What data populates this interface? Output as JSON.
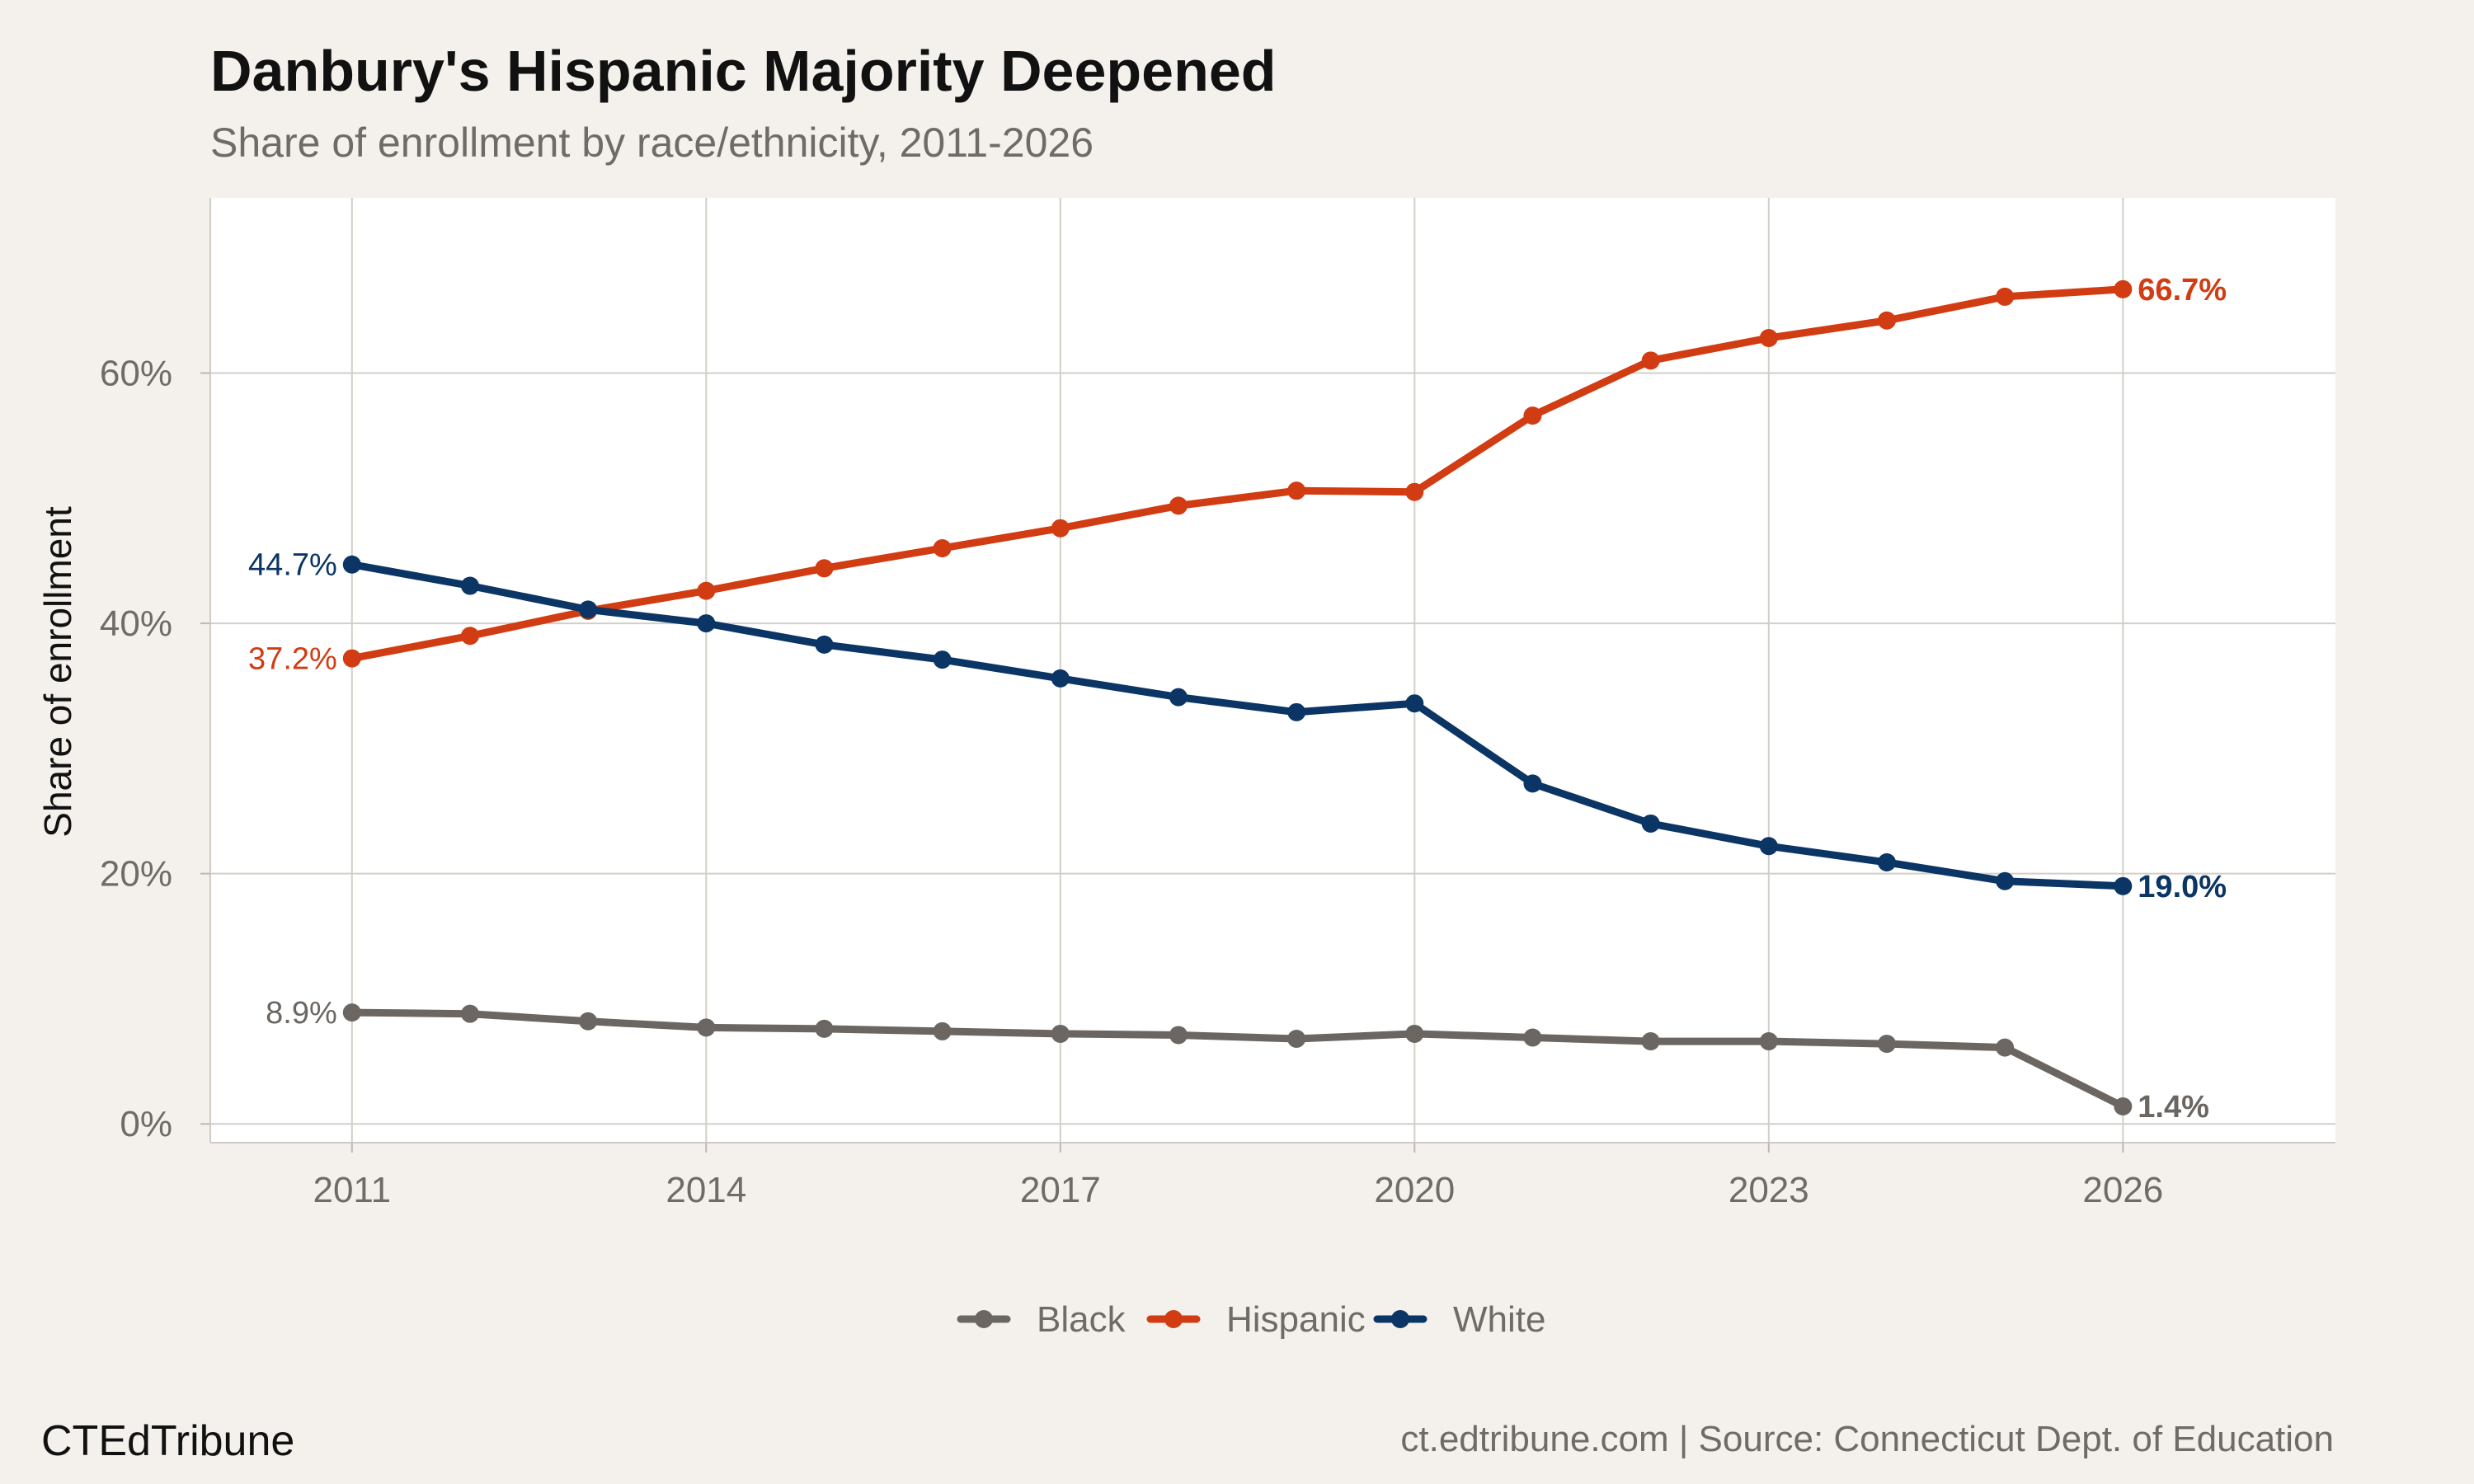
{
  "chart_data": {
    "type": "line",
    "title": "Danbury's Hispanic Majority Deepened",
    "subtitle": "Share of enrollment by race/ethnicity, 2011-2026",
    "xlabel": "",
    "ylabel": "Share of enrollment",
    "x": [
      2011,
      2012,
      2013,
      2014,
      2015,
      2016,
      2017,
      2018,
      2019,
      2020,
      2021,
      2022,
      2023,
      2024,
      2025,
      2026
    ],
    "xlim": [
      2009.8,
      2027.8
    ],
    "ylim": [
      -1.5,
      74
    ],
    "x_ticks": [
      2011,
      2014,
      2017,
      2020,
      2023,
      2026
    ],
    "x_tick_labels": [
      "2011",
      "2014",
      "2017",
      "2020",
      "2023",
      "2026"
    ],
    "y_ticks": [
      0,
      20,
      40,
      60
    ],
    "y_tick_labels": [
      "0%",
      "20%",
      "40%",
      "60%"
    ],
    "grid": true,
    "legend_position": "bottom",
    "series": [
      {
        "name": "Black",
        "color": "#6b6661",
        "values": [
          8.9,
          8.8,
          8.2,
          7.7,
          7.6,
          7.4,
          7.2,
          7.1,
          6.8,
          7.2,
          6.9,
          6.6,
          6.6,
          6.4,
          6.1,
          1.4
        ],
        "start_label": "8.9%",
        "end_label": "1.4%"
      },
      {
        "name": "Hispanic",
        "color": "#d13c12",
        "values": [
          37.2,
          39.0,
          41.0,
          42.6,
          44.4,
          46.0,
          47.6,
          49.4,
          50.6,
          50.5,
          56.6,
          61.0,
          62.8,
          64.2,
          66.1,
          66.7
        ],
        "start_label": "37.2%",
        "end_label": "66.7%"
      },
      {
        "name": "White",
        "color": "#0b3565",
        "values": [
          44.7,
          43.0,
          41.1,
          40.0,
          38.3,
          37.1,
          35.6,
          34.1,
          32.9,
          33.6,
          27.2,
          24.0,
          22.2,
          20.9,
          19.4,
          19.0
        ],
        "start_label": "44.7%",
        "end_label": "19.0%"
      }
    ]
  },
  "caption": {
    "brand": "CTEdTribune",
    "source": "ct.edtribune.com | Source: Connecticut Dept. of Education"
  }
}
